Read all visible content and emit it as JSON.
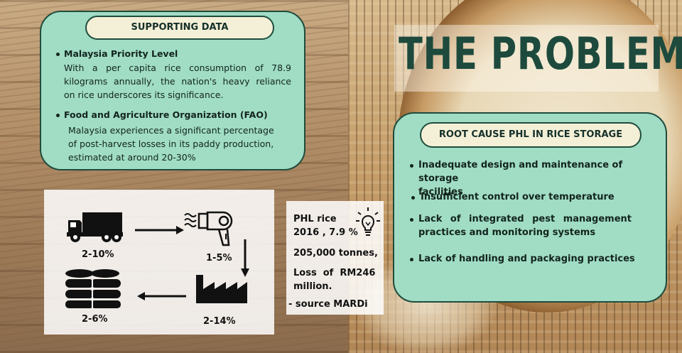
{
  "title": "THE PROBLEM",
  "supporting_data": {
    "heading": "SUPPORTING DATA",
    "items": [
      {
        "title": "Malaysia Priority Level",
        "lines": [
          "With a per capita rice consumption of 78.9",
          "kilograms annually, the nation's heavy reliance",
          "on rice underscores its significance."
        ]
      },
      {
        "title": "Food and Agriculture Organization (FAO)",
        "lines": [
          "Malaysia experiences a significant percentage",
          "of post-harvest losses in its paddy production,",
          "estimated at around 20-30%"
        ]
      }
    ]
  },
  "root_cause": {
    "heading": "ROOT CAUSE PHL IN RICE STORAGE",
    "items": [
      {
        "lines": [
          "Inadequate design and maintenance of storage",
          "facilities"
        ]
      },
      {
        "lines": [
          "Insufficient control over temperature"
        ]
      },
      {
        "lines": [
          "Lack of integrated pest management",
          "practices and monitoring systems"
        ]
      },
      {
        "lines": [
          "Lack of handling and packaging practices"
        ]
      }
    ]
  },
  "flow": {
    "transport": {
      "icon": "truck-icon",
      "label": "2-10%"
    },
    "drying": {
      "icon": "hair-dryer-icon",
      "label": "1-5%"
    },
    "milling": {
      "icon": "factory-icon",
      "label": "2-14%"
    },
    "storage": {
      "icon": "storage-stack-icon",
      "label": "2-6%"
    }
  },
  "stats": {
    "line1": "PHL rice",
    "line2": "2016 , 7.9 %",
    "line3": "205,000 tonnes,",
    "line4a": "Loss  of  RM246",
    "line4b": "million.",
    "source": "- source MARDi",
    "icon": "lightbulb-icon"
  },
  "colors": {
    "panel": "#a0ddc4",
    "panel_border": "#1f4b3d",
    "pill": "#f4f0d7",
    "title": "#1d4a3d"
  }
}
